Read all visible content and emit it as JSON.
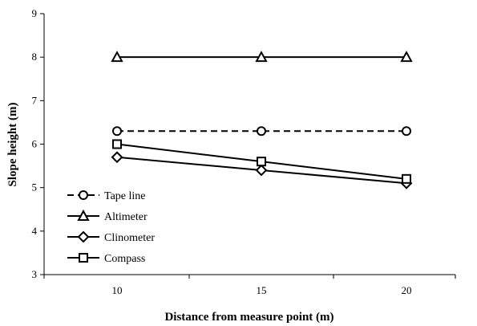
{
  "chart_data": {
    "type": "line",
    "title": "",
    "xlabel": "Distance from measure point (m)",
    "ylabel": "Slope height (m)",
    "x": [
      10,
      15,
      20
    ],
    "x_tick_labels": [
      "10",
      "15",
      "20"
    ],
    "ylim": [
      3,
      9
    ],
    "y_ticks": [
      "3",
      "4",
      "5",
      "6",
      "7",
      "8",
      "9"
    ],
    "grid": false,
    "legend_position": "bottom-left",
    "series": [
      {
        "name": "Tape line",
        "marker": "circle",
        "dashed": true,
        "values": [
          6.3,
          6.3,
          6.3
        ]
      },
      {
        "name": "Altimeter",
        "marker": "triangle",
        "dashed": false,
        "values": [
          8.0,
          8.0,
          8.0
        ]
      },
      {
        "name": "Clinometer",
        "marker": "diamond",
        "dashed": false,
        "values": [
          5.7,
          5.4,
          5.1
        ]
      },
      {
        "name": "Compass",
        "marker": "square",
        "dashed": false,
        "values": [
          6.0,
          5.6,
          5.2
        ]
      }
    ]
  }
}
